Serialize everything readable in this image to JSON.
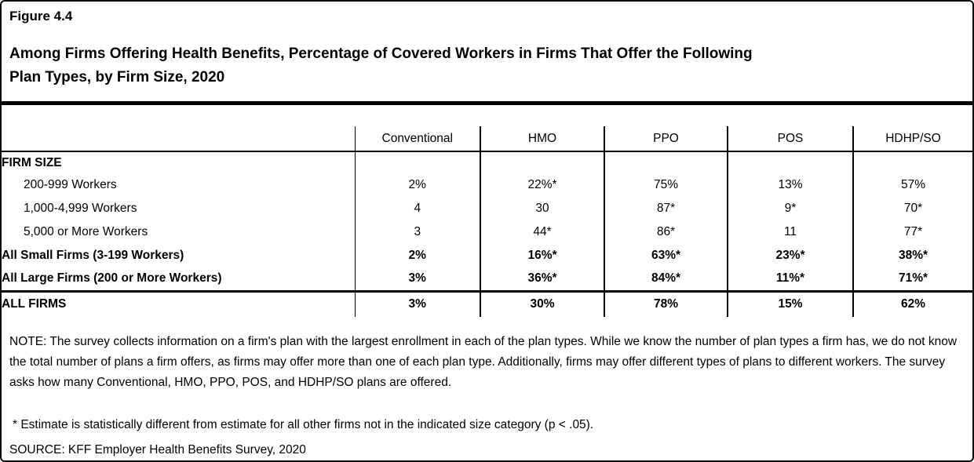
{
  "figure": {
    "label": "Figure 4.4",
    "title": "Among Firms Offering Health Benefits, Percentage of Covered Workers in Firms That Offer the Following Plan Types, by Firm Size, 2020",
    "title_lines": [
      "Among Firms Offering Health Benefits, Percentage of Covered Workers in Firms That Offer the Following",
      "Plan Types, by Firm Size, 2020"
    ]
  },
  "table": {
    "columns": [
      "Conventional",
      "HMO",
      "PPO",
      "POS",
      "HDHP/SO"
    ],
    "rows": [
      {
        "label": "FIRM SIZE",
        "style": "section",
        "values": [
          "",
          "",
          "",
          "",
          ""
        ]
      },
      {
        "label": "200-999 Workers",
        "style": "indent",
        "values": [
          "2%",
          "22%*",
          "75%",
          "13%",
          "57%"
        ]
      },
      {
        "label": "1,000-4,999 Workers",
        "style": "indent",
        "values": [
          "4",
          "30",
          "87*",
          "9*",
          "70*"
        ]
      },
      {
        "label": "5,000 or More Workers",
        "style": "indent",
        "values": [
          "3",
          "44*",
          "86*",
          "11",
          "77*"
        ]
      },
      {
        "label": "All Small Firms (3-199 Workers)",
        "style": "bold",
        "values": [
          "2%",
          "16%*",
          "63%*",
          "23%*",
          "38%*"
        ]
      },
      {
        "label": "All Large Firms (200 or More Workers)",
        "style": "bold",
        "values": [
          "3%",
          "36%*",
          "84%*",
          "11%*",
          "71%*"
        ]
      },
      {
        "label": "ALL FIRMS",
        "style": "total",
        "values": [
          "3%",
          "30%",
          "78%",
          "15%",
          "62%"
        ]
      }
    ]
  },
  "notes": {
    "note": "NOTE: The survey collects information on a firm's plan with the largest enrollment in each of the plan types. While we know the number of plan types a firm has, we do not know the total number of plans a firm offers, as firms may offer more than one of each plan type. Additionally, firms may offer different types of plans to different workers. The survey asks how many Conventional, HMO, PPO, POS, and HDHP/SO plans are offered.",
    "footnote": "* Estimate is statistically different from estimate for all other firms not in the indicated size category (p < .05).",
    "source": "SOURCE: KFF Employer Health Benefits Survey, 2020"
  },
  "colors": {
    "text": "#000000",
    "background": "#ffffff",
    "border": "#000000"
  }
}
